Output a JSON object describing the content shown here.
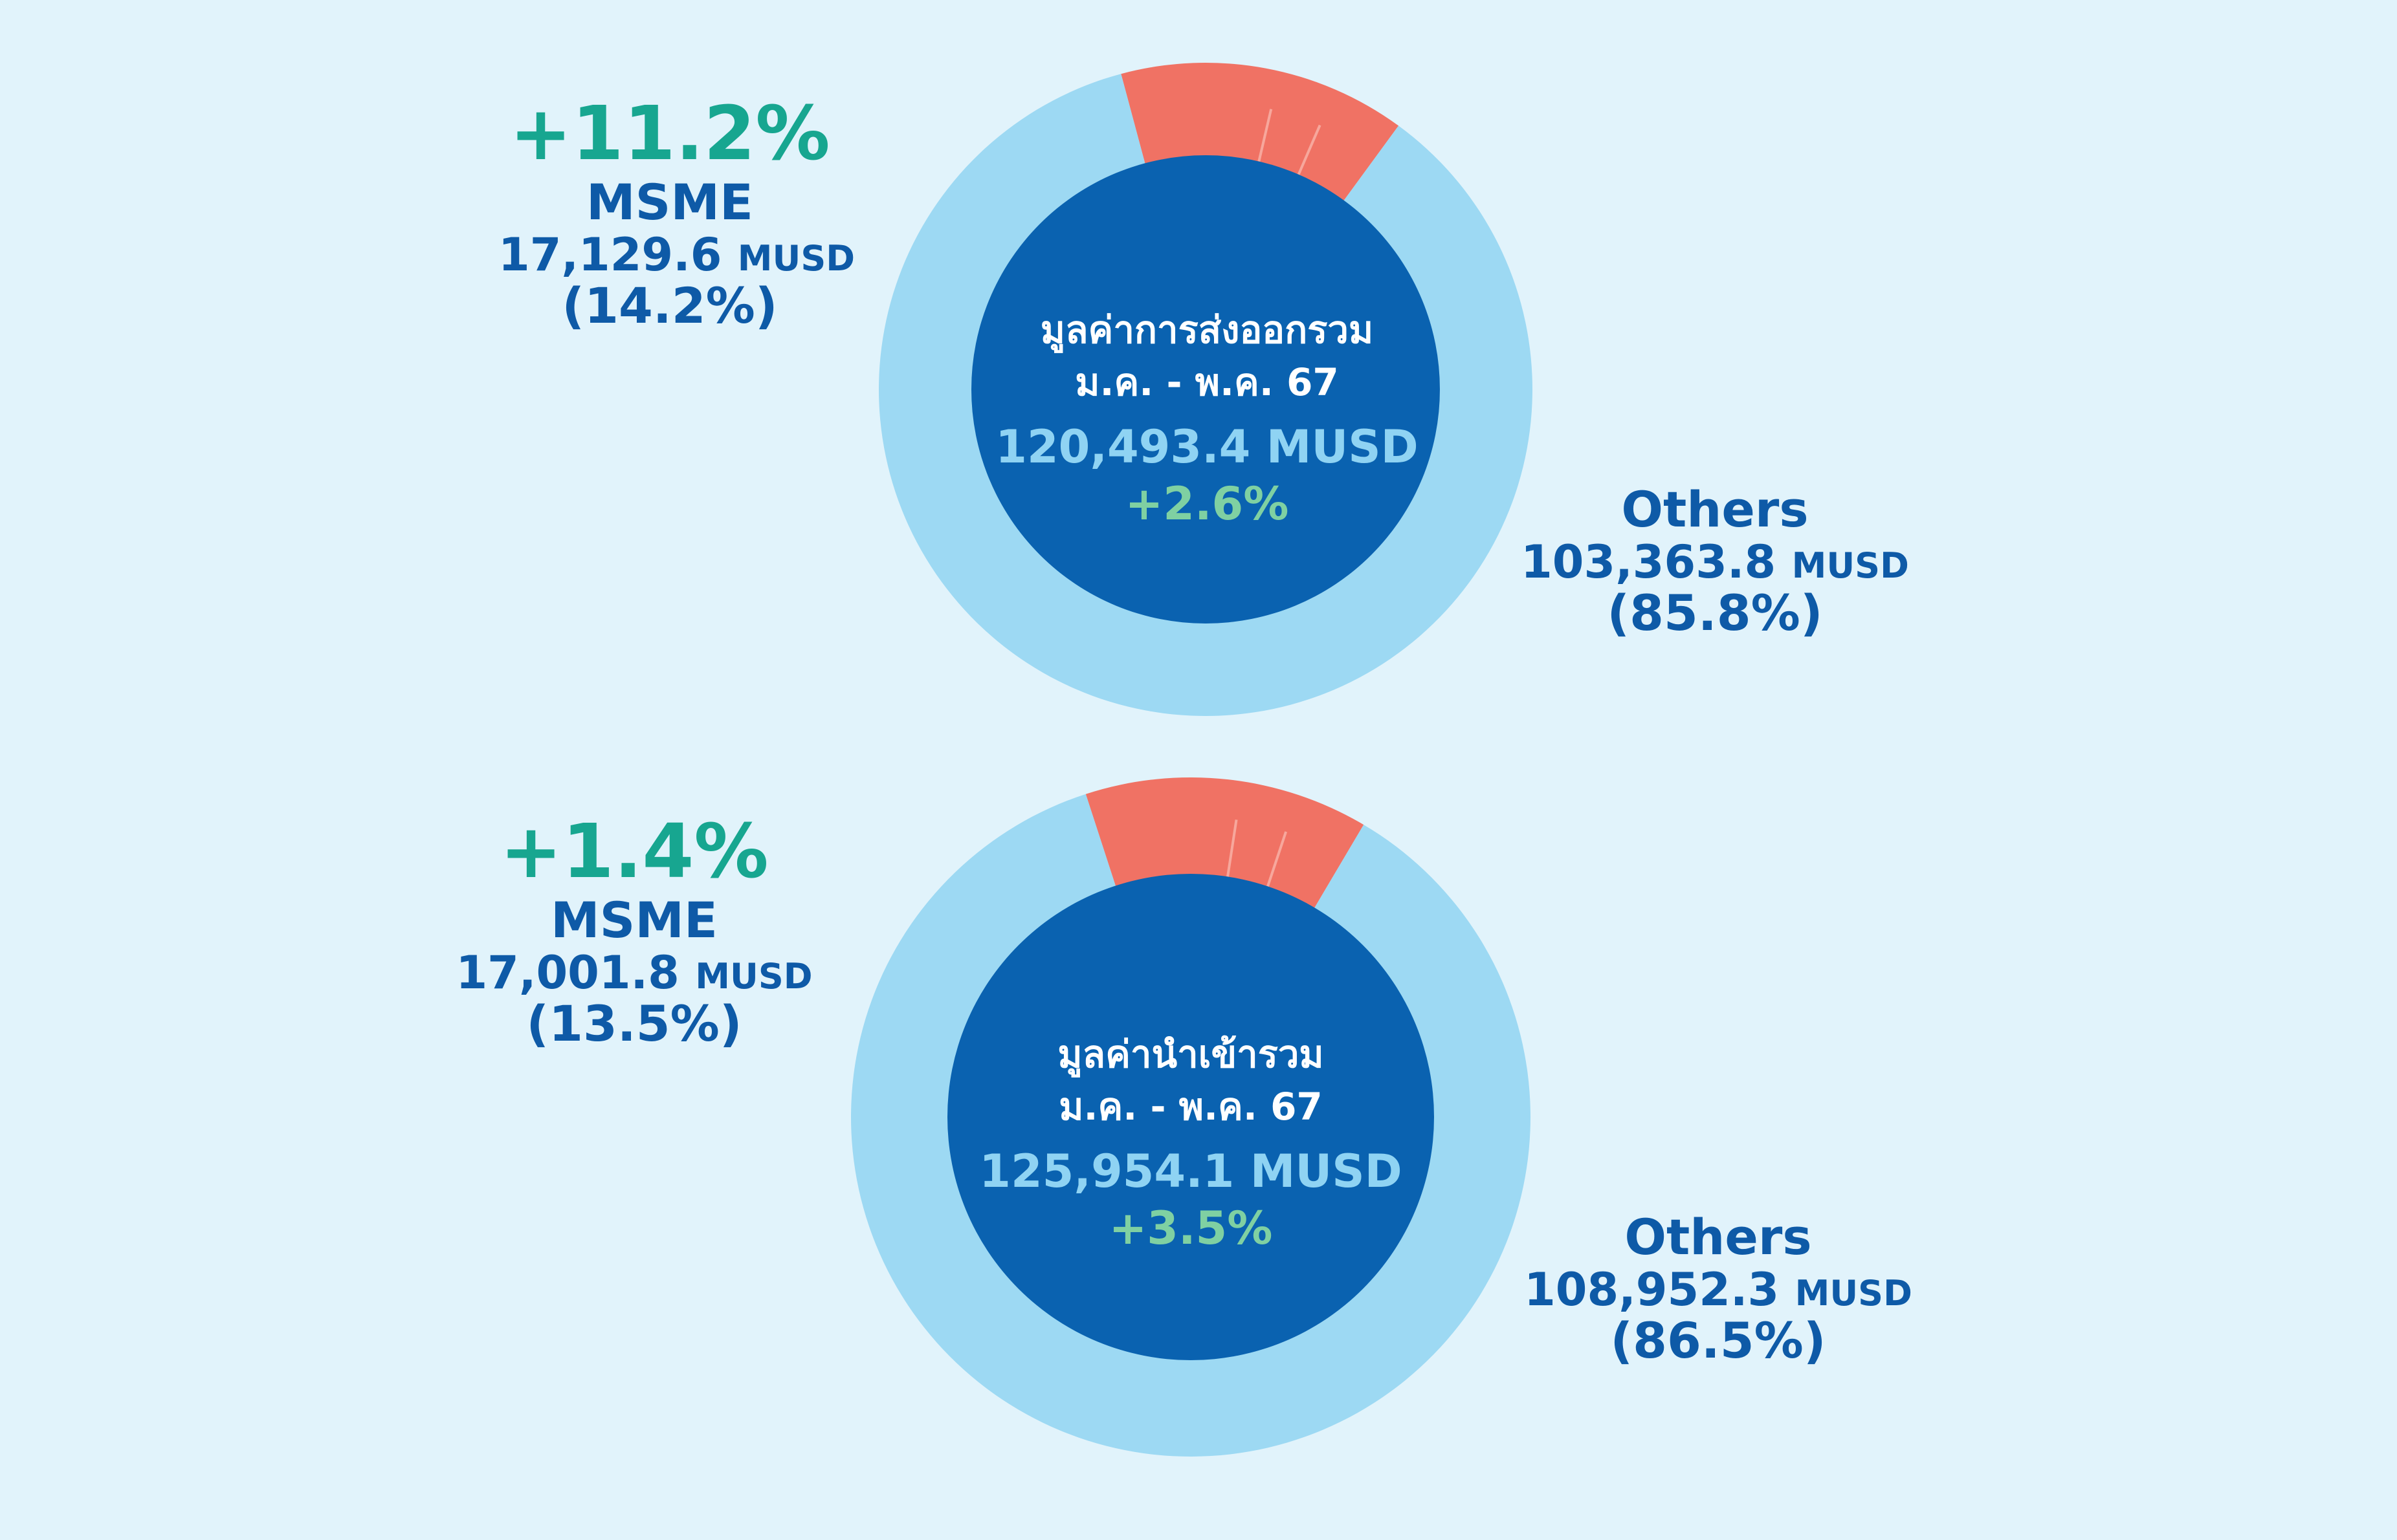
{
  "colors": {
    "background": "#e1f3fb",
    "others": "#9dd9f3",
    "msme": "#f07264",
    "center": "#0a62b0",
    "growth": "#17a690",
    "label": "#0e5aa7",
    "center_total": "#8fd3f3",
    "center_growth": "#7fd0a2"
  },
  "chart_data": [
    {
      "type": "pie",
      "center": {
        "title_line1": "มูลค่าการส่งออกรวม",
        "title_line2": "ม.ค. - พ.ค. 67",
        "total": "120,493.4 MUSD",
        "growth": "+2.6%"
      },
      "slices": [
        {
          "key": "msme",
          "name": "MSME",
          "value": 17129.6,
          "value_text": "17,129.6",
          "unit": "MUSD",
          "share": "(14.2%)",
          "share_value": 14.2,
          "growth": "+11.2%"
        },
        {
          "key": "others",
          "name": "Others",
          "value": 103363.8,
          "value_text": "103,363.8",
          "unit": "MUSD",
          "share": "(85.8%)",
          "share_value": 85.8
        }
      ]
    },
    {
      "type": "pie",
      "center": {
        "title_line1": "มูลค่านำเข้ารวม",
        "title_line2": "ม.ค. - พ.ค. 67",
        "total": "125,954.1 MUSD",
        "growth": "+3.5%"
      },
      "slices": [
        {
          "key": "msme",
          "name": "MSME",
          "value": 17001.8,
          "value_text": "17,001.8",
          "unit": "MUSD",
          "share": "(13.5%)",
          "share_value": 13.5,
          "growth": "+1.4%"
        },
        {
          "key": "others",
          "name": "Others",
          "value": 108952.3,
          "value_text": "108,952.3",
          "unit": "MUSD",
          "share": "(86.5%)",
          "share_value": 86.5
        }
      ]
    }
  ]
}
